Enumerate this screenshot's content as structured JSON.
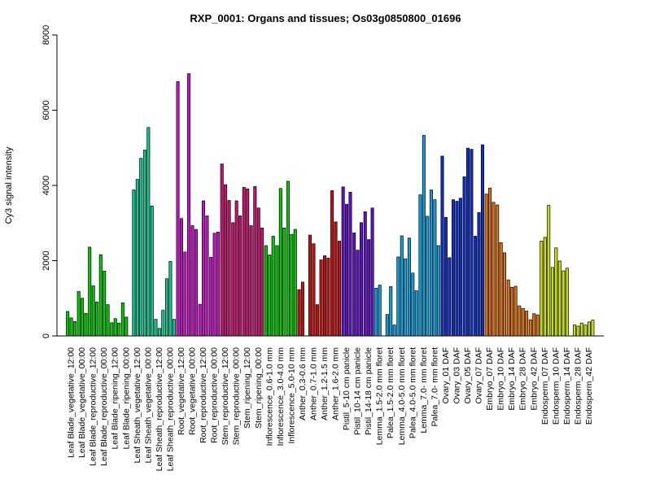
{
  "chart_data": {
    "type": "bar",
    "title": "RXP_0001: Organs and tissues; Os03g0850800_01696",
    "ylabel": "Cy3 signal intensity",
    "xlabel": "",
    "ylim": [
      0,
      8000
    ],
    "yticks": [
      0,
      2000,
      4000,
      6000,
      8000
    ],
    "grid": false,
    "groups": [
      {
        "label": "Leaf Blade_vegetative_12:00",
        "color": "#00cc00",
        "values": [
          650,
          480,
          380
        ]
      },
      {
        "label": "Leaf Blade_vegetative_00:00",
        "color": "#00cc00",
        "values": [
          1180,
          1000,
          600
        ]
      },
      {
        "label": "Leaf Blade_reproductive_12:00",
        "color": "#00cc00",
        "values": [
          2360,
          1330,
          900
        ]
      },
      {
        "label": "Leaf Blade_reproductive_00:00",
        "color": "#00cc00",
        "values": [
          2160,
          1720,
          830
        ]
      },
      {
        "label": "Leaf Blade_ripening_12:00",
        "color": "#00cc00",
        "values": [
          350,
          460,
          340
        ]
      },
      {
        "label": "Leaf Blade_ripening_00:00",
        "color": "#00cc00",
        "values": [
          880,
          500,
          0
        ]
      },
      {
        "label": "Leaf Sheath_vegetative_12:00",
        "color": "#10c890",
        "values": [
          3880,
          4160,
          4720
        ]
      },
      {
        "label": "Leaf Sheath_vegetative_00:00",
        "color": "#10c890",
        "values": [
          4940,
          5540,
          3450
        ]
      },
      {
        "label": "Leaf Sheath_reproductive_12:00",
        "color": "#10c890",
        "values": [
          440,
          200,
          680
        ]
      },
      {
        "label": "Leaf Sheath_reproductive_00:00",
        "color": "#10c890",
        "values": [
          1520,
          1980,
          440
        ]
      },
      {
        "label": "Root_vegetative_12:00",
        "color": "#cc10cc",
        "values": [
          6760,
          3120,
          2230
        ]
      },
      {
        "label": "Root_vegetative_00:00",
        "color": "#cc10cc",
        "values": [
          6970,
          2930,
          2830
        ]
      },
      {
        "label": "Root_reproductive_12:00",
        "color": "#cc10cc",
        "values": [
          840,
          3590,
          3190
        ]
      },
      {
        "label": "Root_reproductive_00:00",
        "color": "#cc10cc",
        "values": [
          2090,
          2730,
          2760
        ]
      },
      {
        "label": "Stem_reproductive_12:00",
        "color": "#cc1070",
        "values": [
          4570,
          4020,
          3600
        ]
      },
      {
        "label": "Stem_reproductive_00:00",
        "color": "#cc1070",
        "values": [
          3010,
          3590,
          3190
        ]
      },
      {
        "label": "Stem_ripening_12:00",
        "color": "#cc1070",
        "values": [
          3950,
          3910,
          2930
        ]
      },
      {
        "label": "Stem_ripening_00:00",
        "color": "#cc1070",
        "values": [
          3970,
          3400,
          2870
        ]
      },
      {
        "label": "Inflorescence_0.6-1.0 mm",
        "color": "#00cc00",
        "values": [
          2400,
          2150,
          2650
        ]
      },
      {
        "label": "Inflorescence_3.0-4.0 mm",
        "color": "#00cc00",
        "values": [
          2400,
          3920,
          2870
        ]
      },
      {
        "label": "Inflorescence_5.0-10 mm",
        "color": "#00cc00",
        "values": [
          4110,
          2700,
          2830
        ]
      },
      {
        "label": "Anther_0.3-0.6 mm",
        "color": "#cc1010",
        "values": [
          1230,
          1430,
          0
        ]
      },
      {
        "label": "Anther_0.7-1.0 mm",
        "color": "#cc1010",
        "values": [
          2680,
          2450,
          830
        ]
      },
      {
        "label": "Anther_1.2-1.5 mm",
        "color": "#cc1010",
        "values": [
          2020,
          2130,
          2070
        ]
      },
      {
        "label": "Anther_1.6-2.0 mm",
        "color": "#cc1010",
        "values": [
          3860,
          3030,
          2520
        ]
      },
      {
        "label": "Pistil_5-10 cm panicle",
        "color": "#6010cc",
        "values": [
          3960,
          3500,
          3820
        ]
      },
      {
        "label": "Pistil_10-14 cm panicle",
        "color": "#6010cc",
        "values": [
          2740,
          2280,
          3010
        ]
      },
      {
        "label": "Pistil_14-18 cm panicle",
        "color": "#6010cc",
        "values": [
          3300,
          2560,
          3400
        ]
      },
      {
        "label": "Lemma_1.5-2.0 mm floret",
        "color": "#10a0e0",
        "values": [
          1270,
          1350,
          0
        ]
      },
      {
        "label": "Palea_1.5-2.0 mm floret",
        "color": "#10a0e0",
        "values": [
          570,
          1310,
          290
        ]
      },
      {
        "label": "Lemma_4.0-5.0 mm floret",
        "color": "#10a0e0",
        "values": [
          2100,
          2660,
          2050
        ]
      },
      {
        "label": "Palea_4.0-5.0 mm floret",
        "color": "#10a0e0",
        "values": [
          2600,
          1670,
          1200
        ]
      },
      {
        "label": "Lemma_7.0- mm floret",
        "color": "#10a0e0",
        "values": [
          3750,
          5330,
          3180
        ]
      },
      {
        "label": "Palea_7.0- mm floret",
        "color": "#10a0e0",
        "values": [
          3880,
          3620,
          2400
        ]
      },
      {
        "label": "Ovary_01 DAF",
        "color": "#1030cc",
        "values": [
          4780,
          3150,
          2080
        ]
      },
      {
        "label": "Ovary_03 DAF",
        "color": "#1030cc",
        "values": [
          3620,
          3580,
          3660
        ]
      },
      {
        "label": "Ovary_05 DAF",
        "color": "#1030cc",
        "values": [
          4230,
          4990,
          4960
        ]
      },
      {
        "label": "Ovary_07 DAF",
        "color": "#1030cc",
        "values": [
          2650,
          3280,
          5080
        ]
      },
      {
        "label": "Embryo_07 DAF",
        "color": "#e07010",
        "values": [
          3770,
          3930,
          3550
        ]
      },
      {
        "label": "Embryo_10 DAF",
        "color": "#e07010",
        "values": [
          3480,
          2480,
          2210
        ]
      },
      {
        "label": "Embryo_14 DAF",
        "color": "#e07010",
        "values": [
          1490,
          1290,
          1320
        ]
      },
      {
        "label": "Embryo_28 DAF",
        "color": "#e07010",
        "values": [
          800,
          730,
          660
        ]
      },
      {
        "label": "Embryo_42 DAF",
        "color": "#e07010",
        "values": [
          430,
          590,
          560
        ]
      },
      {
        "label": "Endosperm_07 DAF",
        "color": "#c8e010",
        "values": [
          2520,
          2620,
          3470
        ]
      },
      {
        "label": "Endosperm_10 DAF",
        "color": "#c8e010",
        "values": [
          1820,
          2340,
          1990
        ]
      },
      {
        "label": "Endosperm_14 DAF",
        "color": "#c8e010",
        "values": [
          1730,
          1800,
          0
        ]
      },
      {
        "label": "Endosperm_28 DAF",
        "color": "#c8e010",
        "values": [
          290,
          260,
          340
        ]
      },
      {
        "label": "Endosperm_42 DAF",
        "color": "#c8e010",
        "values": [
          290,
          370,
          420
        ]
      }
    ]
  }
}
